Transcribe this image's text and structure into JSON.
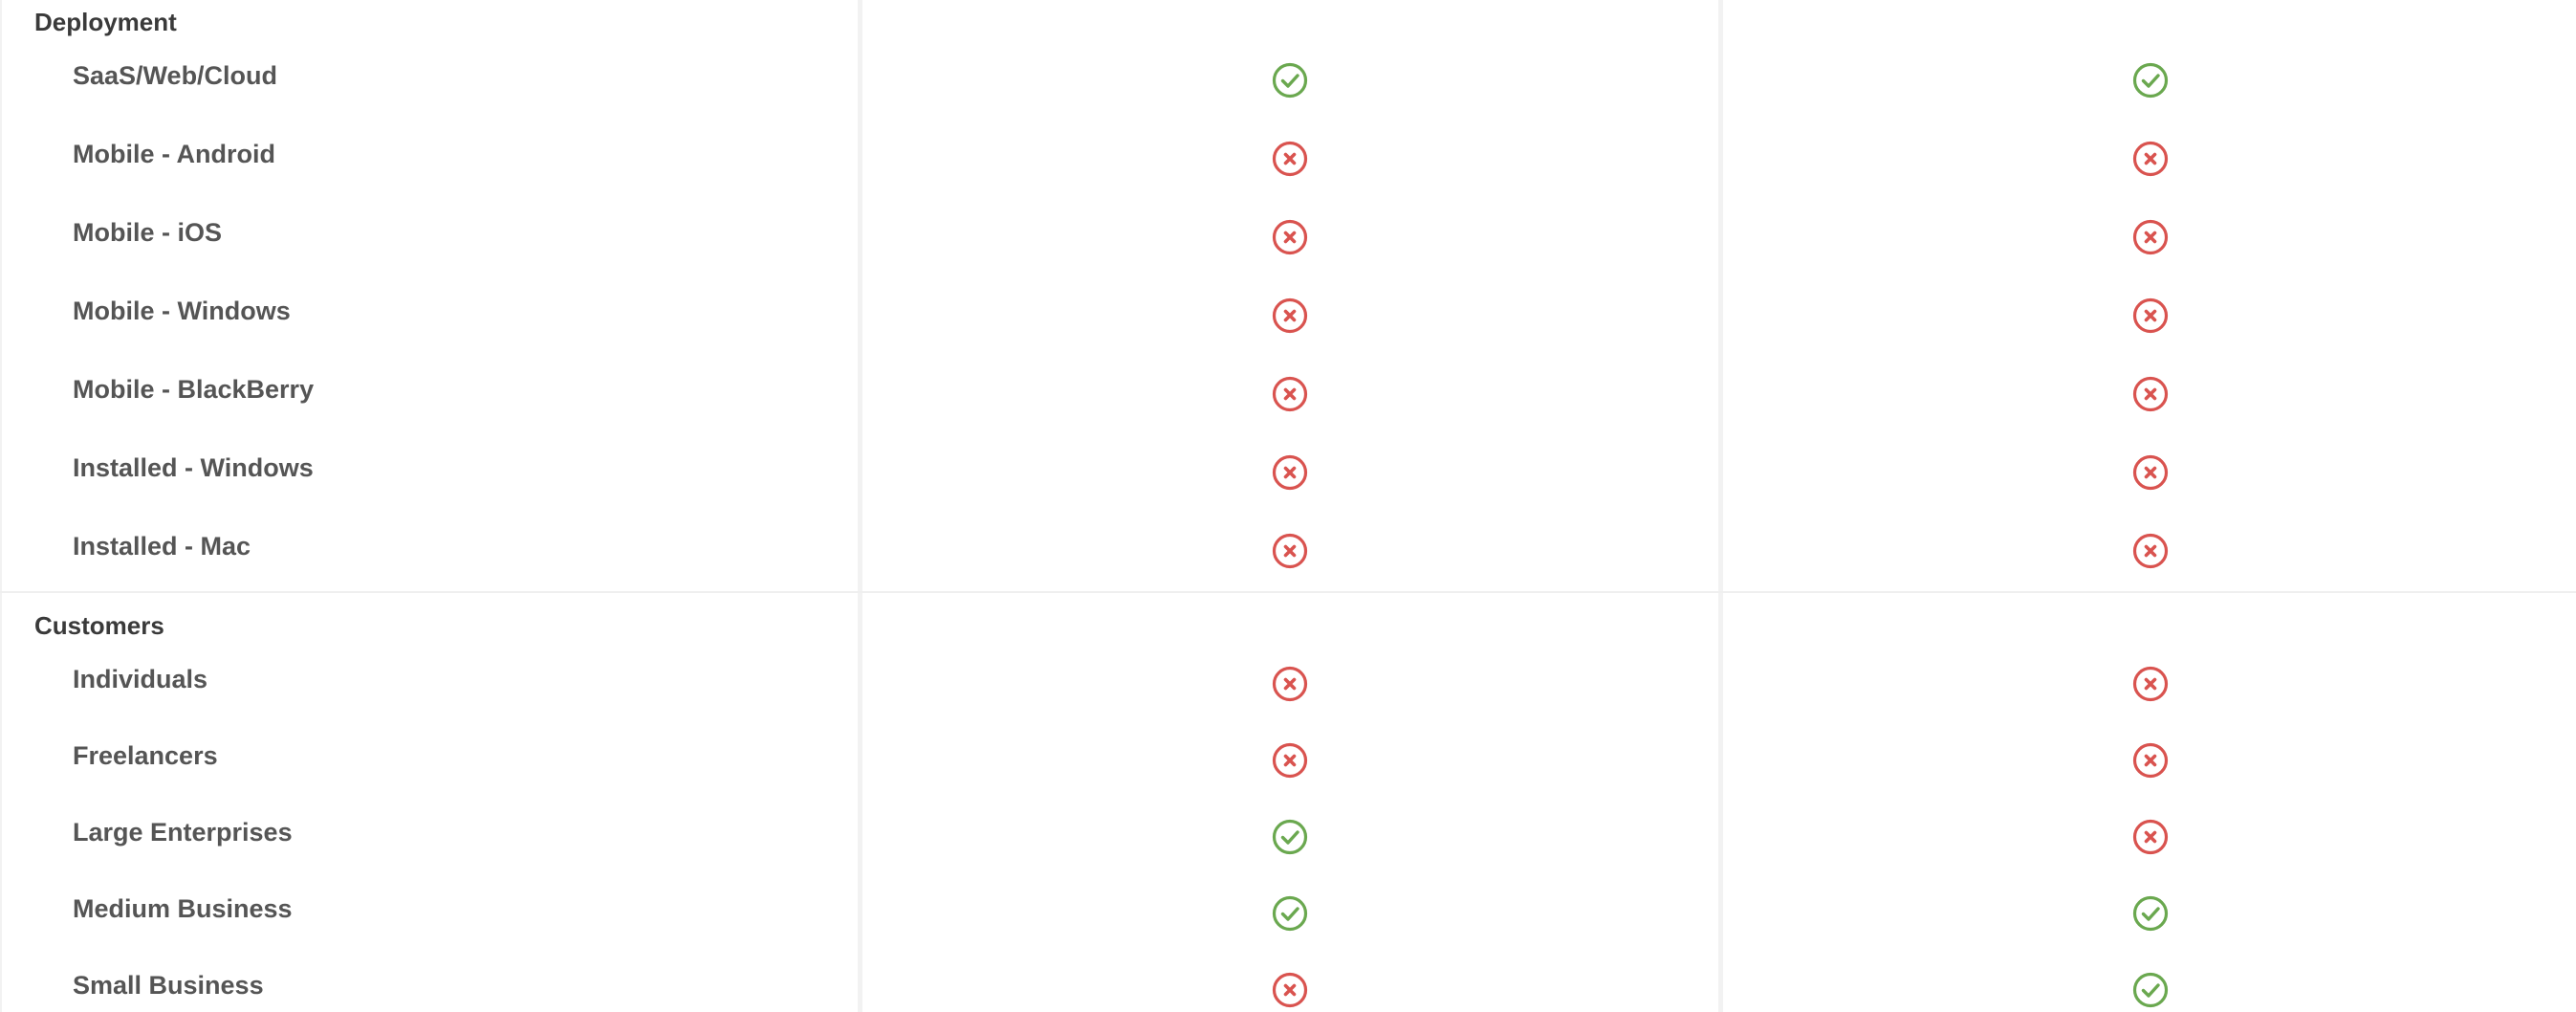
{
  "colors": {
    "yes": "#6aa84f",
    "no": "#d9534f"
  },
  "sections": [
    {
      "title": "Deployment",
      "rows": [
        {
          "label": "SaaS/Web/Cloud",
          "values": [
            "yes",
            "yes"
          ]
        },
        {
          "label": "Mobile - Android",
          "values": [
            "no",
            "no"
          ]
        },
        {
          "label": "Mobile - iOS",
          "values": [
            "no",
            "no"
          ]
        },
        {
          "label": "Mobile - Windows",
          "values": [
            "no",
            "no"
          ]
        },
        {
          "label": "Mobile - BlackBerry",
          "values": [
            "no",
            "no"
          ]
        },
        {
          "label": "Installed - Windows",
          "values": [
            "no",
            "no"
          ]
        },
        {
          "label": "Installed - Mac",
          "values": [
            "no",
            "no"
          ]
        }
      ]
    },
    {
      "title": "Customers",
      "rows": [
        {
          "label": "Individuals",
          "values": [
            "no",
            "no"
          ]
        },
        {
          "label": "Freelancers",
          "values": [
            "no",
            "no"
          ]
        },
        {
          "label": "Large Enterprises",
          "values": [
            "yes",
            "no"
          ]
        },
        {
          "label": "Medium Business",
          "values": [
            "yes",
            "yes"
          ]
        },
        {
          "label": "Small Business",
          "values": [
            "no",
            "yes"
          ]
        }
      ]
    }
  ]
}
